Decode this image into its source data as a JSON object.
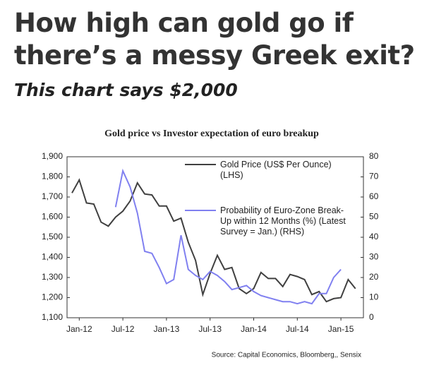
{
  "headline": "How high can gold go if there’s a messy Greek exit?",
  "subheadline": "This chart says $2,000",
  "chart_data": {
    "type": "line",
    "title": "Gold price vs Investor expectation of euro breakup",
    "categories": [
      null,
      "Jan-12",
      null,
      null,
      null,
      null,
      null,
      "Jul-12",
      null,
      null,
      null,
      null,
      null,
      "Jan-13",
      null,
      null,
      null,
      null,
      null,
      "Jul-13",
      null,
      null,
      null,
      null,
      null,
      "Jan-14",
      null,
      null,
      null,
      null,
      null,
      "Jul-14",
      null,
      null,
      null,
      null,
      null,
      "Jan-15",
      null,
      null
    ],
    "series": [
      {
        "name": "Gold Price (US$ Per Ounce) (LHS)",
        "color": "#404040",
        "axis": "y",
        "values": [
          1720,
          1785,
          1670,
          1665,
          1575,
          1555,
          1600,
          1630,
          1680,
          1770,
          1715,
          1710,
          1655,
          1655,
          1580,
          1595,
          1475,
          1385,
          1215,
          1320,
          1410,
          1340,
          1350,
          1245,
          1220,
          1245,
          1325,
          1295,
          1295,
          1255,
          1315,
          1305,
          1290,
          1215,
          1230,
          1180,
          1195,
          1200,
          1290,
          1245
        ]
      },
      {
        "name": "Probability of Euro-Zone Break-Up within 12 Months (%) (Latest Survey = Jan.) (RHS)",
        "color": "#8080f0",
        "axis": "y2",
        "values": [
          null,
          null,
          null,
          null,
          null,
          null,
          55,
          73,
          65,
          52,
          33,
          32,
          25,
          17,
          19,
          41,
          24,
          21,
          19,
          23,
          21,
          18,
          14,
          15,
          16,
          13,
          11,
          10,
          9,
          8,
          8,
          7,
          8,
          7,
          12,
          12,
          20,
          24,
          null,
          null
        ]
      }
    ],
    "ylim": [
      1100,
      1900
    ],
    "yticks": [
      {
        "value": 1100,
        "label": "1,100"
      },
      {
        "value": 1200,
        "label": "1,200"
      },
      {
        "value": 1300,
        "label": "1,300"
      },
      {
        "value": 1400,
        "label": "1,400"
      },
      {
        "value": 1500,
        "label": "1,500"
      },
      {
        "value": 1600,
        "label": "1,600"
      },
      {
        "value": 1700,
        "label": "1,700"
      },
      {
        "value": 1800,
        "label": "1,800"
      },
      {
        "value": 1900,
        "label": "1,900"
      }
    ],
    "y2lim": [
      0,
      80
    ],
    "y2ticks": [
      0,
      10,
      20,
      30,
      40,
      50,
      60,
      70,
      80
    ],
    "source": "Source: Capital Economics, Bloomberg,, Sensix"
  }
}
